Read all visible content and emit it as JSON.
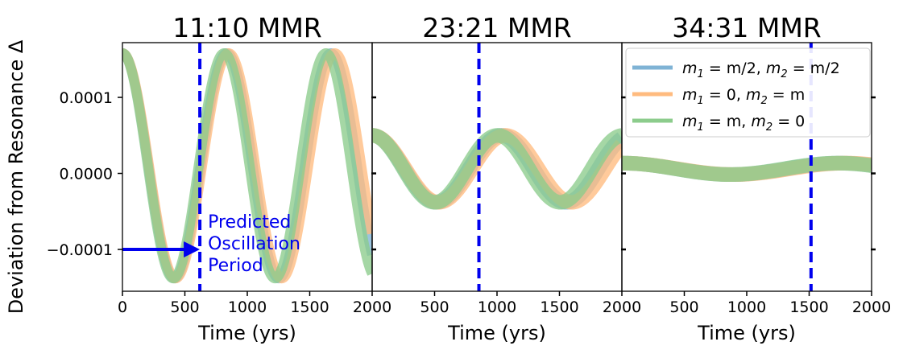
{
  "chart_data": {
    "type": "line",
    "ylabel": "Deviation from Resonance Δ",
    "yticks": [
      {
        "value": 0.0001,
        "label": "0.0001"
      },
      {
        "value": 0.0,
        "label": "0.0000"
      },
      {
        "value": -0.0001,
        "label": "−0.0001"
      }
    ],
    "ylim": [
      -0.000155,
      0.000172
    ],
    "xlim": [
      0,
      2000
    ],
    "xticks_first": [
      "0",
      "500",
      "1000",
      "1500",
      "2000"
    ],
    "xticks_other": [
      "500",
      "1000",
      "1500",
      "2000"
    ],
    "xlabel": "Time (yrs)",
    "series": [
      {
        "name": "m₁ = m/2, m₂ = m/2",
        "color": "#7fb3d5"
      },
      {
        "name": "m₁ = 0, m₂ = m",
        "color": "#ffbb7f"
      },
      {
        "name": "m₁ = m, m₂ = 0",
        "color": "#8ccc8c"
      }
    ],
    "legend": {
      "location": "top-right",
      "entries": [
        {
          "m1": "m",
          "s1": "1",
          "eq1": " = m/2, ",
          "m2": "m",
          "s2": "2",
          "eq2": " = m/2"
        },
        {
          "m1": "m",
          "s1": "1",
          "eq1": " = 0, ",
          "m2": "m",
          "s2": "2",
          "eq2": " = m"
        },
        {
          "m1": "m",
          "s1": "1",
          "eq1": " = m, ",
          "m2": "m",
          "s2": "2",
          "eq2": " = 0"
        }
      ]
    },
    "panels": [
      {
        "title": "11:10 MMR",
        "predicted_period": 620,
        "annotation": [
          "Predicted",
          "Oscillation",
          "Period"
        ],
        "arrow": {
          "x_from": 0,
          "x_to": 620,
          "y": -0.0001
        },
        "curves": [
          {
            "mean": 1e-05,
            "amp": 0.000148,
            "period": 835,
            "band": 4.5e-06
          },
          {
            "mean": 1e-05,
            "amp": 0.000148,
            "period": 850,
            "band": 4.5e-06
          },
          {
            "mean": 1e-05,
            "amp": 0.000148,
            "period": 815,
            "band": 4.5e-06
          }
        ]
      },
      {
        "title": "23:21 MMR",
        "predicted_period": 855,
        "curves": [
          {
            "mean": 6e-06,
            "amp": 4.4e-05,
            "period": 1035,
            "band": 7.5e-06
          },
          {
            "mean": 6e-06,
            "amp": 4.4e-05,
            "period": 1065,
            "band": 7.5e-06
          },
          {
            "mean": 6e-06,
            "amp": 4.4e-05,
            "period": 1005,
            "band": 7.5e-06
          }
        ]
      },
      {
        "title": "34:31 MMR",
        "predicted_period": 1515,
        "curves": [
          {
            "mean": 6e-06,
            "amp": 7.5e-06,
            "period": 1760,
            "band": 7.5e-06
          },
          {
            "mean": 6e-06,
            "amp": 7.5e-06,
            "period": 1790,
            "band": 7.5e-06
          },
          {
            "mean": 6e-06,
            "amp": 7.5e-06,
            "period": 1730,
            "band": 7.5e-06
          }
        ]
      }
    ]
  }
}
